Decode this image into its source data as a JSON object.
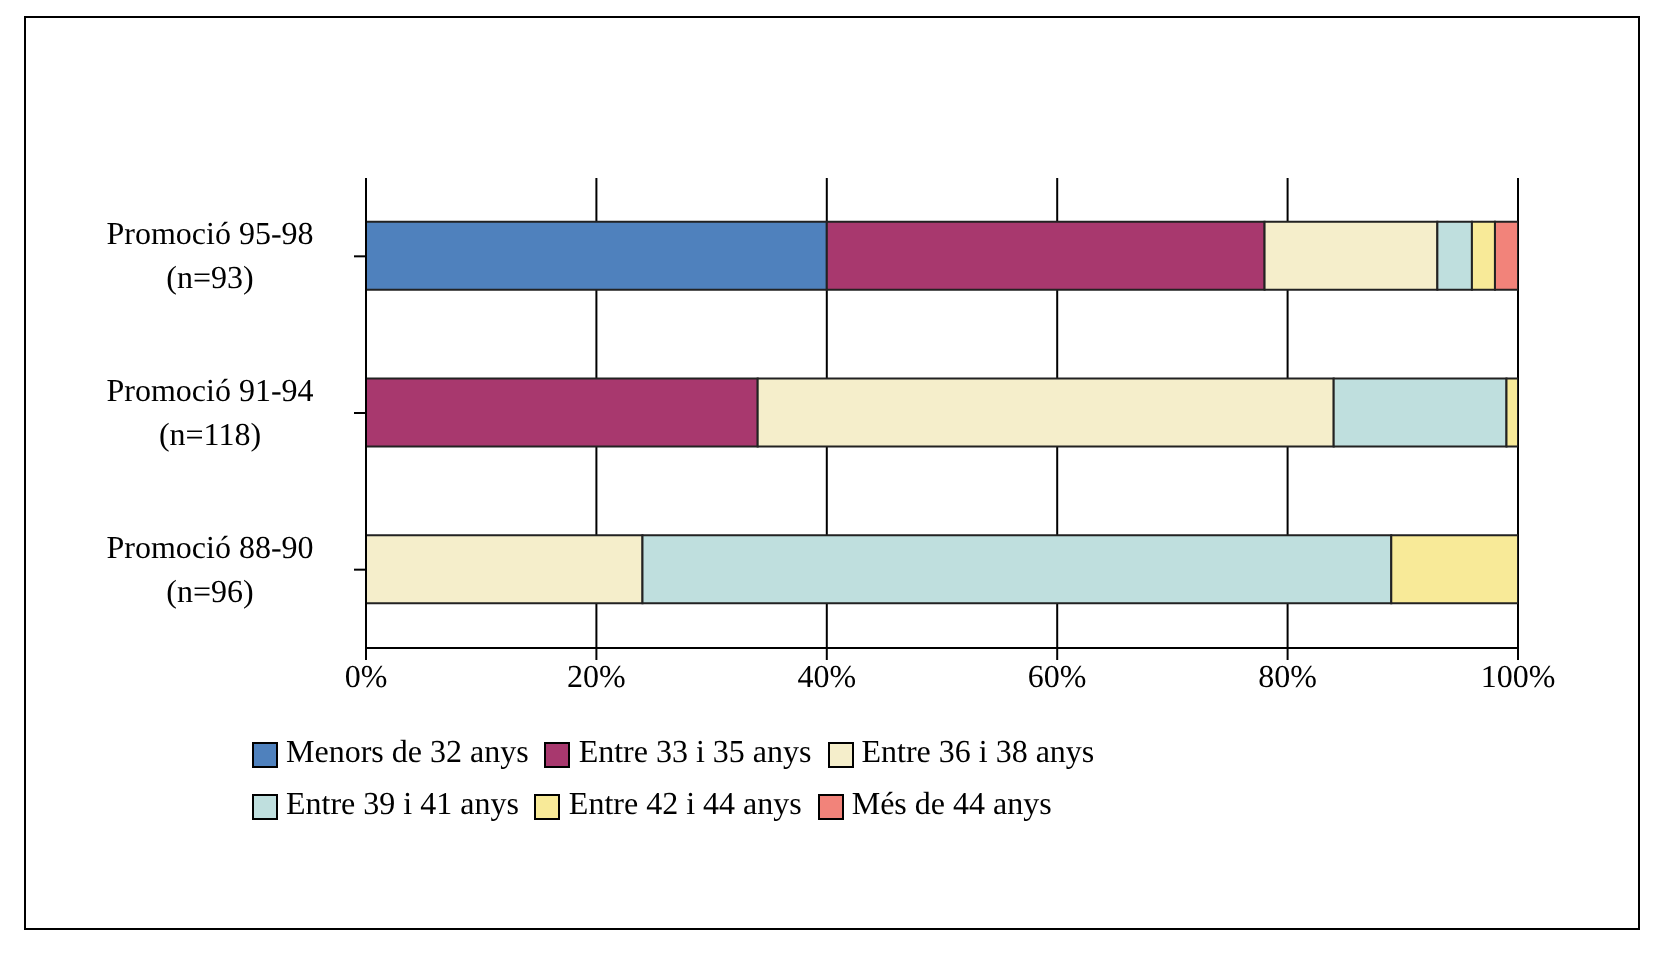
{
  "chart_data": {
    "type": "bar",
    "orientation": "horizontal",
    "stacked": true,
    "categories": [
      "Promoció 95-98\n(n=93)",
      "Promoció 91-94\n(n=118)",
      "Promoció 88-90\n(n=96)"
    ],
    "series": [
      {
        "name": "Menors de 32 anys",
        "color": "#4f81bd",
        "values": [
          40,
          null,
          null
        ]
      },
      {
        "name": "Entre 33 i 35 anys",
        "color": "#a8386e",
        "values": [
          38,
          34,
          null
        ]
      },
      {
        "name": "Entre 36 i 38 anys",
        "color": "#f5eecb",
        "values": [
          15,
          50,
          24
        ]
      },
      {
        "name": "Entre 39 i 41 anys",
        "color": "#bfdfde",
        "values": [
          3,
          15,
          65
        ]
      },
      {
        "name": "Entre 42 i 44 anys",
        "color": "#f8ea98",
        "values": [
          2,
          1,
          11
        ]
      },
      {
        "name": "Més de 44 anys",
        "color": "#f2837a",
        "values": [
          2,
          null,
          null
        ]
      }
    ],
    "xlim": [
      0,
      100
    ],
    "xticks": [
      {
        "value": 0,
        "label": "0%"
      },
      {
        "value": 20,
        "label": "20%"
      },
      {
        "value": 40,
        "label": "40%"
      },
      {
        "value": 60,
        "label": "60%"
      },
      {
        "value": 80,
        "label": "80%"
      },
      {
        "value": 100,
        "label": "100%"
      }
    ],
    "grid": "x",
    "legend": "bottom"
  }
}
